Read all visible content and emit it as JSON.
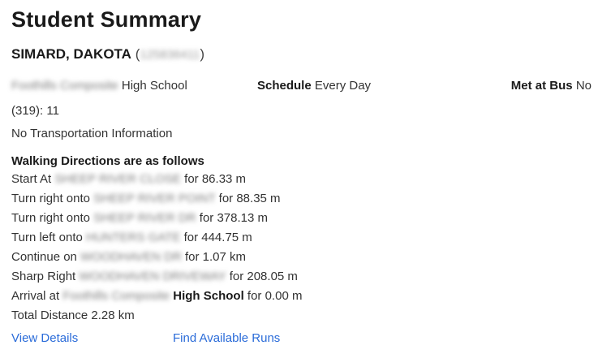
{
  "title": "Student Summary",
  "student": {
    "name": "SIMARD, DAKOTA",
    "paren_open": "(",
    "id_redacted": "125836411",
    "paren_close": ")"
  },
  "info": {
    "school_name_redacted": "Foothills Composite",
    "school_type": "High School",
    "schedule_label": "Schedule",
    "schedule_value": "Every Day",
    "met_at_bus_label": "Met at Bus",
    "met_at_bus_value": "No",
    "school_code": "(319): 11"
  },
  "transportation_status": "No Transportation Information",
  "directions": {
    "heading": "Walking Directions are as follows",
    "steps": [
      {
        "prefix": "Start At",
        "street_redacted": "SHEEP RIVER CLOSE",
        "distance": "for 86.33 m"
      },
      {
        "prefix": "Turn right onto",
        "street_redacted": "SHEEP RIVER POINT",
        "distance": "for 88.35 m"
      },
      {
        "prefix": "Turn right onto",
        "street_redacted": "SHEEP RIVER DR",
        "distance": "for 378.13 m"
      },
      {
        "prefix": "Turn left onto",
        "street_redacted": "HUNTERS GATE",
        "distance": "for 444.75 m"
      },
      {
        "prefix": "Continue on",
        "street_redacted": "WOODHAVEN DR",
        "distance": "for 1.07 km"
      },
      {
        "prefix": "Sharp Right",
        "street_redacted": "WOODHAVEN DRIVEWAY",
        "distance": "for 208.05 m"
      }
    ],
    "arrival": {
      "prefix": "Arrival at",
      "school_redacted": "Foothills Composite",
      "school_bold": "High School",
      "distance": "for 0.00 m"
    },
    "total": "Total Distance 2.28 km"
  },
  "links": {
    "view_details": "View Details",
    "find_available_runs": "Find Available Runs"
  },
  "colors": {
    "link": "#2b6cd9",
    "text": "#333333",
    "heading": "#1a1a1a"
  }
}
